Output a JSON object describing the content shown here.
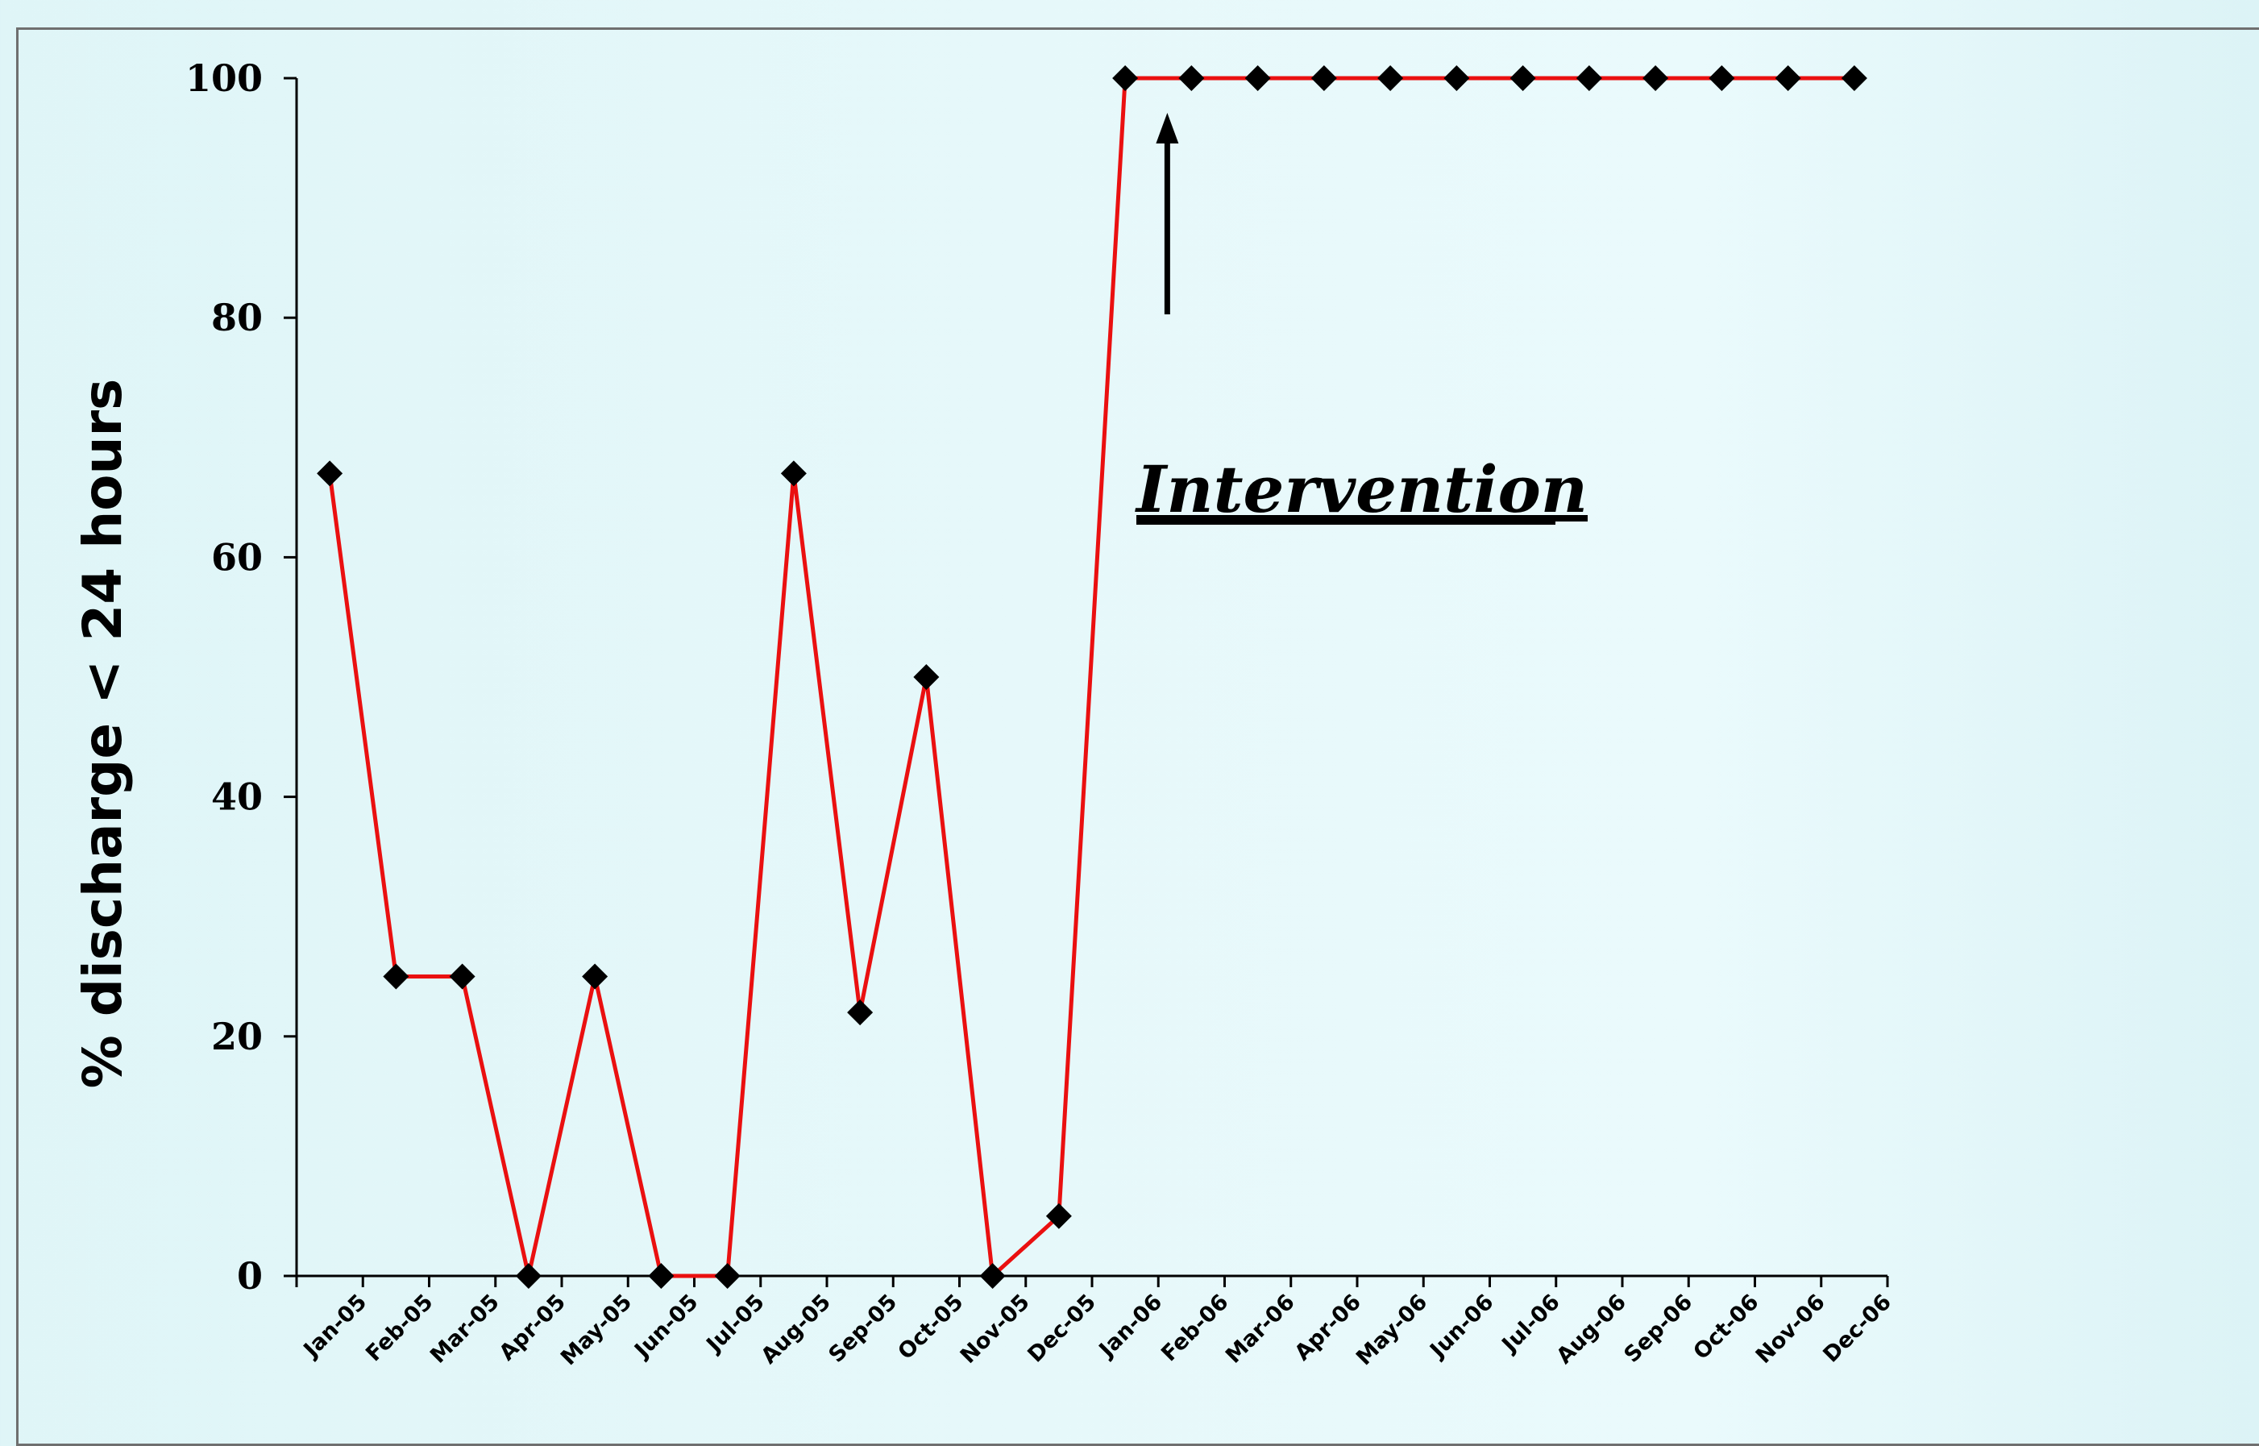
{
  "chart_data": {
    "type": "line",
    "title": "",
    "xlabel": "",
    "ylabel": "% discharge < 24 hours",
    "ylim": [
      0,
      100
    ],
    "yticks": [
      0,
      20,
      40,
      60,
      80,
      100
    ],
    "categories": [
      "Jan-05",
      "Feb-05",
      "Mar-05",
      "Apr-05",
      "May-05",
      "Jun-05",
      "Jul-05",
      "Aug-05",
      "Sep-05",
      "Oct-05",
      "Nov-05",
      "Dec-05",
      "Jan-06",
      "Feb-06",
      "Mar-06",
      "Apr-06",
      "May-06",
      "Jun-06",
      "Jul-06",
      "Aug-06",
      "Sep-06",
      "Oct-06",
      "Nov-06",
      "Dec-06"
    ],
    "series": [
      {
        "color": "#ea1010",
        "values": [
          67,
          25,
          25,
          0,
          25,
          0,
          0,
          67,
          22,
          50,
          0,
          5,
          100,
          100,
          100,
          100,
          100,
          100,
          100,
          100,
          100,
          100,
          100,
          100
        ]
      }
    ],
    "annotation": {
      "text": "Intervention",
      "category": "Feb-06"
    },
    "grid": false,
    "legend": "none"
  }
}
